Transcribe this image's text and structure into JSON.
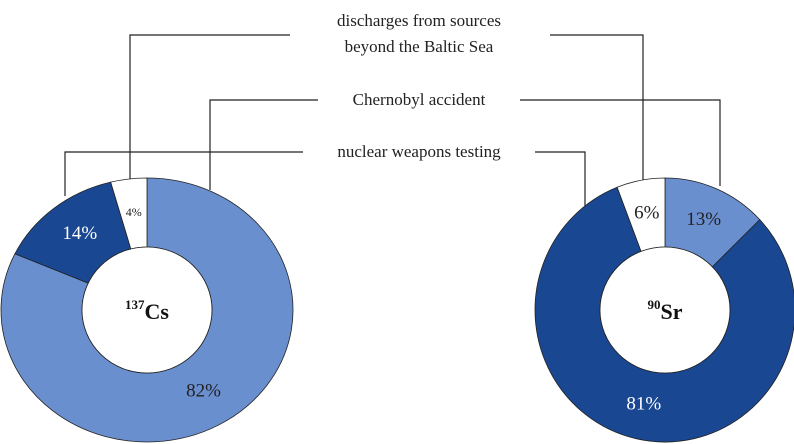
{
  "legend": [
    "discharges from sources beyond the Baltic Sea",
    "Chernobyl accident",
    "nuclear weapons testing"
  ],
  "chart_data": [
    {
      "type": "donut",
      "center_label": [
        "137",
        "Cs"
      ],
      "values": [
        82,
        14,
        4
      ],
      "value_labels": [
        "82%",
        "14%",
        "4%"
      ],
      "colors": [
        "#6a8fcf",
        "#1a4792",
        "#ffffff"
      ]
    },
    {
      "type": "donut",
      "center_label": [
        "90",
        "Sr"
      ],
      "values": [
        13,
        81,
        6
      ],
      "value_labels": [
        "13%",
        "81%",
        "6%"
      ],
      "colors": [
        "#6a8fcf",
        "#1a4792",
        "#ffffff"
      ]
    }
  ]
}
